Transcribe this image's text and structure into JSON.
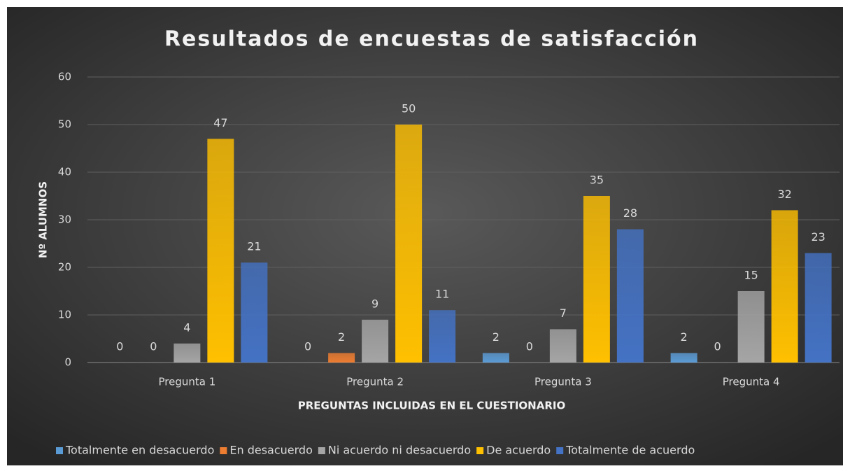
{
  "chart_data": {
    "type": "bar",
    "title": "Resultados de encuestas de satisfacción",
    "x_label": "PREGUNTAS INCLUIDAS EN EL CUESTIONARIO",
    "y_label": "Nº ALUMNOS",
    "categories": [
      "Pregunta 1",
      "Pregunta 2",
      "Pregunta 3",
      "Pregunta 4"
    ],
    "series": [
      {
        "name": "Totalmente en desacuerdo",
        "color": "#5b9bd5",
        "values": [
          0,
          0,
          2,
          2
        ]
      },
      {
        "name": "En desacuerdo",
        "color": "#ed7d31",
        "values": [
          0,
          2,
          0,
          0
        ]
      },
      {
        "name": "Ni acuerdo ni desacuerdo",
        "color": "#a5a5a5",
        "values": [
          4,
          9,
          7,
          15
        ]
      },
      {
        "name": "De acuerdo",
        "color": "#ffc000",
        "values": [
          47,
          50,
          35,
          32
        ]
      },
      {
        "name": "Totalmente de acuerdo",
        "color": "#4472c4",
        "values": [
          21,
          11,
          28,
          23
        ]
      }
    ],
    "ylim": [
      0,
      60
    ],
    "yticks": [
      0,
      10,
      20,
      30,
      40,
      50,
      60
    ],
    "grid": true,
    "legend": "bottom"
  }
}
